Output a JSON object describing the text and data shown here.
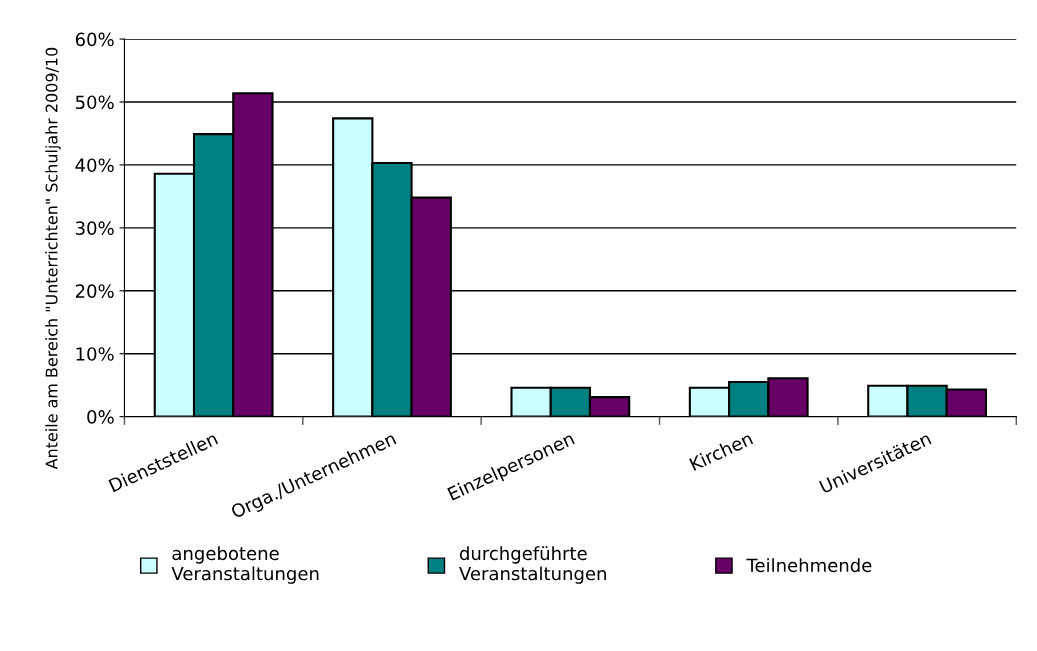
{
  "chart_data": {
    "type": "bar",
    "ylabel": "Anteile am Bereich \"Unterrichten\" Schuljahr 2009/10",
    "categories": [
      "Dienststellen",
      "Orga./Unternehmen",
      "Einzelpersonen",
      "Kirchen",
      "Universitäten"
    ],
    "series": [
      {
        "name": "angebotene\nVeranstaltungen",
        "color": "#ccffff",
        "values": [
          38.6,
          47.4,
          4.6,
          4.6,
          4.9
        ]
      },
      {
        "name": "durchgeführte\nVeranstaltungen",
        "color": "#008080",
        "values": [
          44.9,
          40.3,
          4.6,
          5.5,
          4.9
        ]
      },
      {
        "name": "Teilnehmende",
        "color": "#660066",
        "values": [
          51.4,
          34.8,
          3.1,
          6.1,
          4.3
        ]
      }
    ],
    "ylim": [
      0,
      60
    ],
    "yticks": [
      {
        "value": 0,
        "label": "0%"
      },
      {
        "value": 10,
        "label": "10%"
      },
      {
        "value": 20,
        "label": "20%"
      },
      {
        "value": 30,
        "label": "30%"
      },
      {
        "value": 40,
        "label": "40%"
      },
      {
        "value": 50,
        "label": "50%"
      },
      {
        "value": 60,
        "label": "60%"
      }
    ],
    "grid": "y",
    "legend": "bottom"
  }
}
